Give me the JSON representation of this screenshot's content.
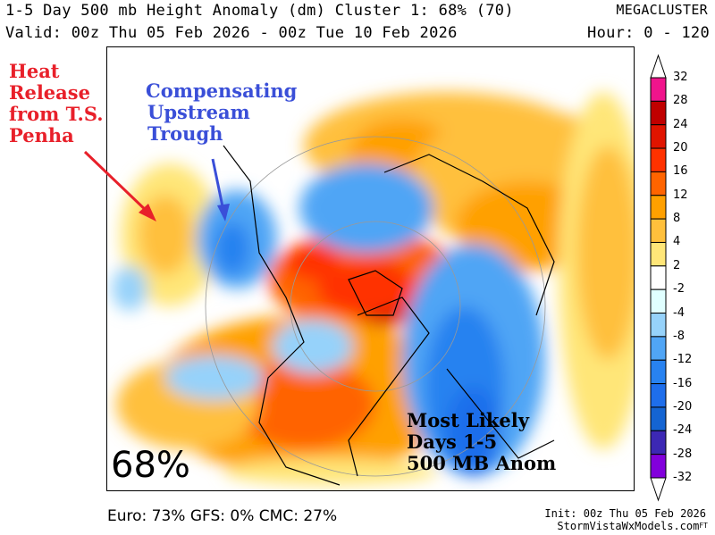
{
  "header": {
    "title": "1-5 Day 500 mb Height Anomaly (dm) Cluster 1: 68% (70)",
    "brand": "MEGACLUSTER",
    "valid": "Valid: 00z Thu 05 Feb 2026 - 00z Tue 10 Feb 2026",
    "hour": "Hour: 0 - 120"
  },
  "annotations": {
    "heat_release": [
      "Heat",
      "Release",
      "from T.S.",
      "Penha"
    ],
    "trough": [
      "Compensating",
      "Upstream",
      "Trough"
    ],
    "most_likely": [
      "Most Likely",
      "Days 1-5",
      "500 MB Anom"
    ],
    "cluster_pct": "68%",
    "red": "#e8202a",
    "blue": "#3a4fd8"
  },
  "footer": {
    "models": "Euro: 73% GFS: 0% CMC: 27%",
    "init": "Init: 00z Thu 05 Feb 2026",
    "site": "StormVistaWxModels.com",
    "tag": "FT"
  },
  "chart_data": {
    "type": "heatmap",
    "title": "1-5 Day 500 mb Height Anomaly (dm) Cluster 1: 68% (70)",
    "units": "dm",
    "colorbar": {
      "levels": [
        "32",
        "28",
        "24",
        "20",
        "16",
        "12",
        "8",
        "4",
        "2",
        "-2",
        "-4",
        "-8",
        "-12",
        "-16",
        "-20",
        "-24",
        "-28",
        "-32"
      ],
      "colors": [
        "#f0148c",
        "#c00000",
        "#e01400",
        "#ff3200",
        "#ff6400",
        "#ffa000",
        "#ffc03c",
        "#ffe678",
        "#ffffff",
        "#e0ffff",
        "#96d2fa",
        "#50a5f5",
        "#2882f0",
        "#1e6eeb",
        "#1464d2",
        "#3c28b4",
        "#8200dc"
      ]
    }
  }
}
